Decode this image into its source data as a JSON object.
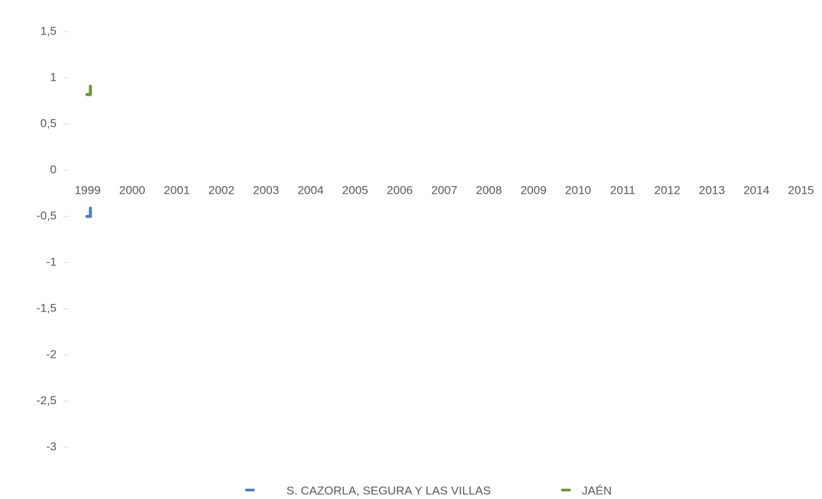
{
  "chart_data": {
    "type": "line",
    "categories": [
      "1999",
      "2000",
      "2001",
      "2002",
      "2003",
      "2004",
      "2005",
      "2006",
      "2007",
      "2008",
      "2009",
      "2010",
      "2011",
      "2012",
      "2013",
      "2014",
      "2015"
    ],
    "series": [
      {
        "name": "S. CAZORLA, SEGURA Y LAS VILLAS",
        "color": "#4f81bd",
        "values": [
          -0.47,
          null,
          null,
          null,
          null,
          null,
          null,
          null,
          null,
          null,
          null,
          null,
          null,
          null,
          null,
          null,
          null
        ]
      },
      {
        "name": "JAÉN",
        "color": "#77933c",
        "values": [
          0.85,
          null,
          null,
          null,
          null,
          null,
          null,
          null,
          null,
          null,
          null,
          null,
          null,
          null,
          null,
          null,
          null
        ]
      }
    ],
    "ylim": [
      -3,
      1.5
    ],
    "yticks": [
      {
        "value": -3,
        "label": "-3"
      },
      {
        "value": -2.5,
        "label": "-2,5"
      },
      {
        "value": -2,
        "label": "-2"
      },
      {
        "value": -1.5,
        "label": "-1,5"
      },
      {
        "value": -1,
        "label": "-1"
      },
      {
        "value": -0.5,
        "label": "-0,5"
      },
      0,
      {
        "value": 0.5,
        "label": "0,5"
      },
      1,
      {
        "value": 1.5,
        "label": "1,5"
      }
    ],
    "grid": false,
    "legend": "bottom"
  }
}
